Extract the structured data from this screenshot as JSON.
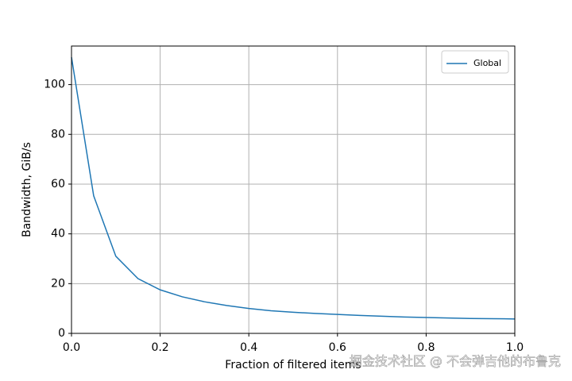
{
  "chart_data": {
    "type": "line",
    "xlabel": "Fraction of filtered items",
    "ylabel": "Bandwidth, GiB/s",
    "x": [
      0,
      0.05,
      0.1,
      0.15,
      0.2,
      0.25,
      0.3,
      0.35,
      0.4,
      0.45,
      0.5,
      0.55,
      0.6,
      0.65,
      0.7,
      0.75,
      0.8,
      0.85,
      0.9,
      0.95,
      1.0
    ],
    "series": [
      {
        "name": "Global",
        "color": "#1f77b4",
        "values": [
          111,
          55.3,
          31,
          22,
          17.5,
          14.7,
          12.7,
          11.2,
          10,
          9.1,
          8.5,
          8.0,
          7.6,
          7.2,
          6.9,
          6.6,
          6.4,
          6.2,
          6.0,
          5.9,
          5.8
        ]
      }
    ],
    "xlim": [
      0,
      1
    ],
    "xticks": [
      {
        "value": 0,
        "label": "0.0"
      },
      0.2,
      0.4,
      0.6,
      0.8,
      {
        "value": 1,
        "label": "1.0"
      }
    ],
    "ylim": [
      0,
      115.5
    ],
    "yticks": [
      0,
      20,
      40,
      60,
      80,
      100
    ],
    "grid": true,
    "legend": "upper right",
    "watermark": "掘金技术社区 @ 不会弹吉他的布鲁克"
  }
}
